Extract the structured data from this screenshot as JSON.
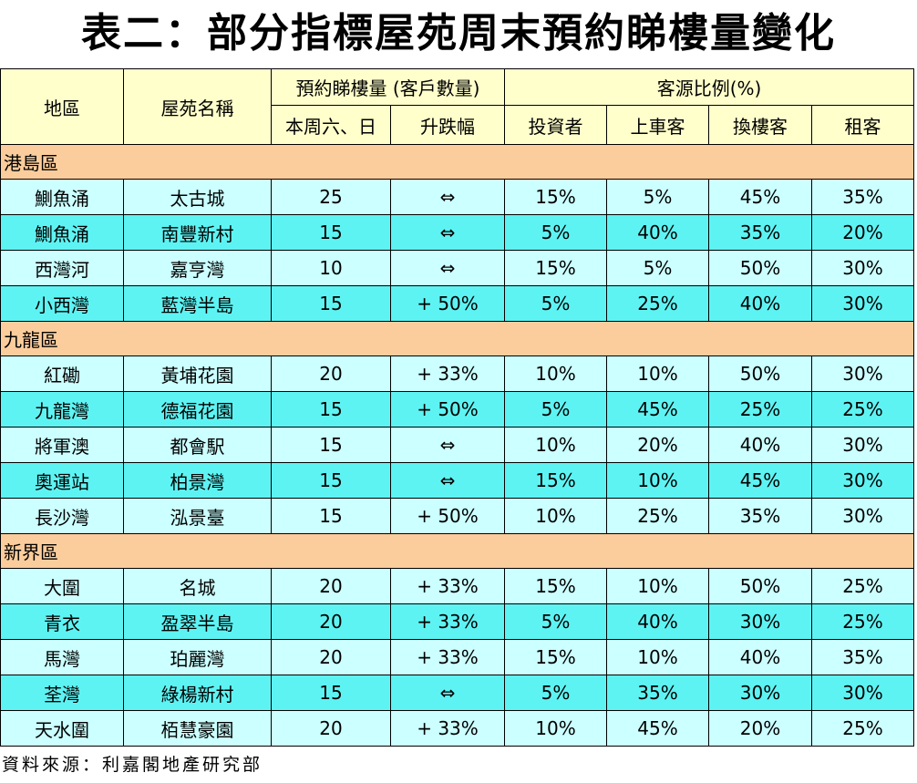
{
  "header": {
    "title": "表二：部分指標屋苑周末預約睇樓量變化"
  },
  "table": {
    "head": {
      "district": "地區",
      "estate": "屋苑名稱",
      "viewings": "預約睇樓量 (客戶數量)",
      "source_ratio": "客源比例(%)",
      "sub": [
        "本周六、日",
        "升跌幅",
        "投資者",
        "上車客",
        "換樓客",
        "租客"
      ]
    },
    "sections": [
      {
        "name": "港島區",
        "rows": [
          [
            "鰂魚涌",
            "太古城",
            "25",
            "⇔",
            "15%",
            "5%",
            "45%",
            "35%"
          ],
          [
            "鰂魚涌",
            "南豐新村",
            "15",
            "⇔",
            "5%",
            "40%",
            "35%",
            "20%"
          ],
          [
            "西灣河",
            "嘉亨灣",
            "10",
            "⇔",
            "15%",
            "5%",
            "50%",
            "30%"
          ],
          [
            "小西灣",
            "藍灣半島",
            "15",
            "+ 50%",
            "5%",
            "25%",
            "40%",
            "30%"
          ]
        ]
      },
      {
        "name": "九龍區",
        "rows": [
          [
            "紅磡",
            "黃埔花園",
            "20",
            "+ 33%",
            "10%",
            "10%",
            "50%",
            "30%"
          ],
          [
            "九龍灣",
            "德福花園",
            "15",
            "+ 50%",
            "5%",
            "45%",
            "25%",
            "25%"
          ],
          [
            "將軍澳",
            "都會駅",
            "15",
            "⇔",
            "10%",
            "20%",
            "40%",
            "30%"
          ],
          [
            "奧運站",
            "柏景灣",
            "15",
            "⇔",
            "15%",
            "10%",
            "45%",
            "30%"
          ],
          [
            "長沙灣",
            "泓景臺",
            "15",
            "+ 50%",
            "10%",
            "25%",
            "35%",
            "30%"
          ]
        ]
      },
      {
        "name": "新界區",
        "rows": [
          [
            "大圍",
            "名城",
            "20",
            "+ 33%",
            "15%",
            "10%",
            "50%",
            "25%"
          ],
          [
            "青衣",
            "盈翠半島",
            "20",
            "+ 33%",
            "5%",
            "40%",
            "30%",
            "25%"
          ],
          [
            "馬灣",
            "珀麗灣",
            "20",
            "+ 33%",
            "15%",
            "10%",
            "40%",
            "35%"
          ],
          [
            "荃灣",
            "綠楊新村",
            "15",
            "⇔",
            "5%",
            "35%",
            "30%",
            "30%"
          ],
          [
            "天水圍",
            "栢慧豪園",
            "20",
            "+ 33%",
            "10%",
            "45%",
            "20%",
            "25%"
          ]
        ]
      }
    ]
  },
  "footer": {
    "source": "資料來源：利嘉閣地產研究部"
  }
}
